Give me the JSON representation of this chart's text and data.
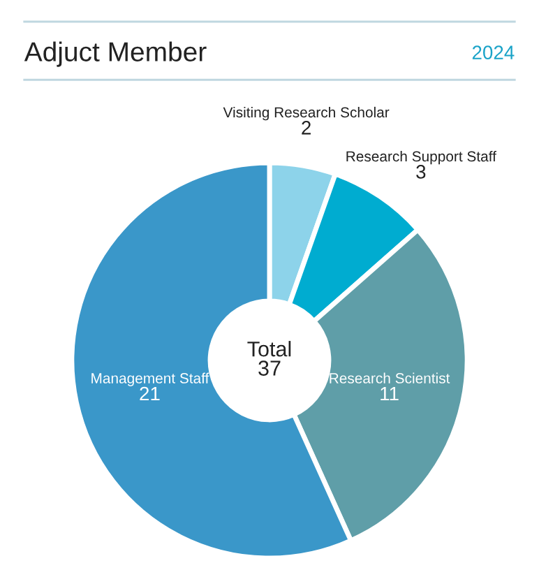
{
  "chart_data": {
    "type": "donut",
    "title": "Adjuct Member",
    "subtitle": "2024",
    "categories": [
      "Visiting Research Scholar",
      "Research Support Staff",
      "Research Scientist",
      "Management Staff"
    ],
    "values": [
      2,
      3,
      11,
      21
    ],
    "colors": [
      "#8dd3ea",
      "#00acd0",
      "#5f9ea8",
      "#3a97c9"
    ],
    "data_labels": true,
    "annotations": [
      "Total\n37"
    ],
    "legend": false
  }
}
